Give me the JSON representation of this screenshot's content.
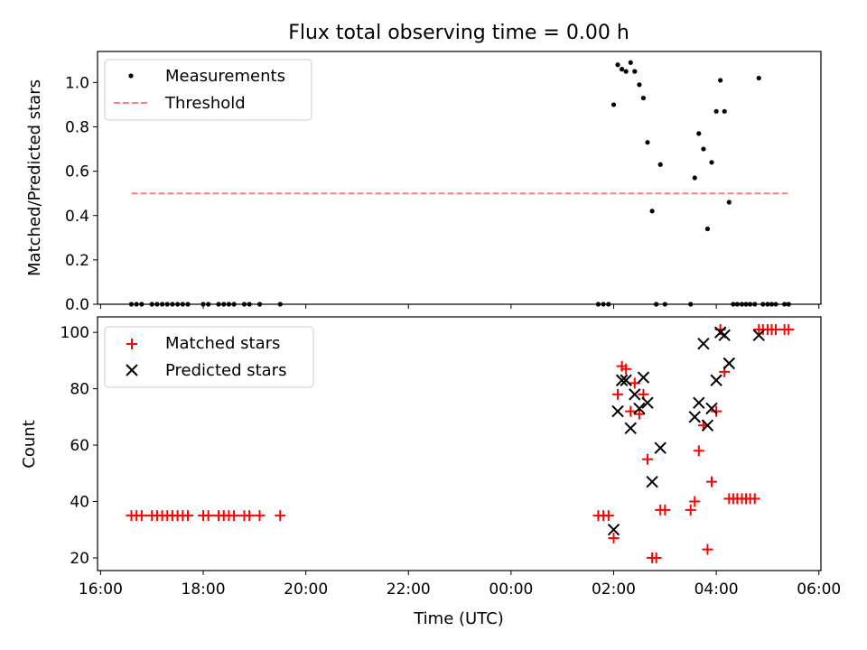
{
  "chart_data": [
    {
      "type": "scatter",
      "title": "Flux total observing time = 0.00 h",
      "xlabel": "",
      "ylabel": "Matched/Predicted stars",
      "xlim_hours": [
        15.94,
        30.04
      ],
      "ylim": [
        0,
        1.14
      ],
      "yticks": [
        0.0,
        0.2,
        0.4,
        0.6,
        0.8,
        1.0
      ],
      "ytick_labels": [
        "0.0",
        "0.2",
        "0.4",
        "0.6",
        "0.8",
        "1.0"
      ],
      "legend_position": "top-left",
      "series": [
        {
          "name": "Measurements",
          "marker": "dot",
          "color": "#000000",
          "points": [
            [
              16.6,
              0
            ],
            [
              16.7,
              0
            ],
            [
              16.8,
              0
            ],
            [
              17.0,
              0
            ],
            [
              17.1,
              0
            ],
            [
              17.2,
              0
            ],
            [
              17.3,
              0
            ],
            [
              17.4,
              0
            ],
            [
              17.5,
              0
            ],
            [
              17.6,
              0
            ],
            [
              17.7,
              0
            ],
            [
              18.0,
              0
            ],
            [
              18.1,
              0
            ],
            [
              18.3,
              0
            ],
            [
              18.4,
              0
            ],
            [
              18.5,
              0
            ],
            [
              18.6,
              0
            ],
            [
              18.8,
              0
            ],
            [
              18.9,
              0
            ],
            [
              19.1,
              0
            ],
            [
              19.5,
              0
            ],
            [
              25.7,
              0
            ],
            [
              25.8,
              0
            ],
            [
              25.9,
              0
            ],
            [
              26.0,
              0.9
            ],
            [
              26.08,
              1.08
            ],
            [
              26.16,
              1.06
            ],
            [
              26.24,
              1.05
            ],
            [
              26.33,
              1.09
            ],
            [
              26.41,
              1.05
            ],
            [
              26.5,
              0.99
            ],
            [
              26.58,
              0.93
            ],
            [
              26.66,
              0.73
            ],
            [
              26.75,
              0.42
            ],
            [
              26.83,
              0
            ],
            [
              26.91,
              0.63
            ],
            [
              27.0,
              0
            ],
            [
              27.5,
              0
            ],
            [
              27.58,
              0.57
            ],
            [
              27.66,
              0.77
            ],
            [
              27.75,
              0.7
            ],
            [
              27.83,
              0.34
            ],
            [
              27.91,
              0.64
            ],
            [
              28.0,
              0.87
            ],
            [
              28.08,
              1.01
            ],
            [
              28.16,
              0.87
            ],
            [
              28.25,
              0.46
            ],
            [
              28.33,
              0
            ],
            [
              28.41,
              0
            ],
            [
              28.5,
              0
            ],
            [
              28.58,
              0
            ],
            [
              28.66,
              0
            ],
            [
              28.75,
              0
            ],
            [
              28.83,
              1.02
            ],
            [
              28.91,
              0
            ],
            [
              29.0,
              0
            ],
            [
              29.08,
              0
            ],
            [
              29.16,
              0
            ],
            [
              29.33,
              0
            ],
            [
              29.41,
              0
            ]
          ]
        },
        {
          "name": "Threshold",
          "marker": "dashed-line",
          "color": "#ff8080",
          "x": [
            16.6,
            29.41
          ],
          "y": [
            0.5,
            0.5
          ]
        }
      ]
    },
    {
      "type": "scatter",
      "title": "",
      "xlabel": "Time (UTC)",
      "ylabel": "Count",
      "xlim_hours": [
        15.94,
        30.04
      ],
      "ylim": [
        15.5,
        105.5
      ],
      "yticks": [
        20,
        40,
        60,
        80,
        100
      ],
      "ytick_labels": [
        "20",
        "40",
        "60",
        "80",
        "100"
      ],
      "xticks_hours": [
        16,
        18,
        20,
        22,
        24,
        26,
        28,
        30
      ],
      "xtick_labels": [
        "16:00",
        "18:00",
        "20:00",
        "22:00",
        "00:00",
        "02:00",
        "04:00",
        "06:00"
      ],
      "legend_position": "top-left",
      "series": [
        {
          "name": "Matched stars",
          "marker": "plus",
          "color": "#ff0000",
          "points": [
            [
              16.6,
              35
            ],
            [
              16.7,
              35
            ],
            [
              16.8,
              35
            ],
            [
              17.0,
              35
            ],
            [
              17.1,
              35
            ],
            [
              17.2,
              35
            ],
            [
              17.3,
              35
            ],
            [
              17.4,
              35
            ],
            [
              17.5,
              35
            ],
            [
              17.6,
              35
            ],
            [
              17.7,
              35
            ],
            [
              18.0,
              35
            ],
            [
              18.1,
              35
            ],
            [
              18.3,
              35
            ],
            [
              18.4,
              35
            ],
            [
              18.5,
              35
            ],
            [
              18.6,
              35
            ],
            [
              18.8,
              35
            ],
            [
              18.9,
              35
            ],
            [
              19.1,
              35
            ],
            [
              19.5,
              35
            ],
            [
              25.7,
              35
            ],
            [
              25.8,
              35
            ],
            [
              25.9,
              35
            ],
            [
              26.0,
              27
            ],
            [
              26.08,
              78
            ],
            [
              26.16,
              88
            ],
            [
              26.24,
              87
            ],
            [
              26.33,
              72
            ],
            [
              26.41,
              82
            ],
            [
              26.5,
              71
            ],
            [
              26.58,
              78
            ],
            [
              26.66,
              55
            ],
            [
              26.75,
              20
            ],
            [
              26.83,
              20
            ],
            [
              26.91,
              37
            ],
            [
              27.0,
              37
            ],
            [
              27.5,
              37
            ],
            [
              27.58,
              40
            ],
            [
              27.66,
              58
            ],
            [
              27.75,
              67
            ],
            [
              27.83,
              23
            ],
            [
              27.91,
              47
            ],
            [
              28.0,
              72
            ],
            [
              28.08,
              101
            ],
            [
              28.16,
              86
            ],
            [
              28.25,
              41
            ],
            [
              28.33,
              41
            ],
            [
              28.41,
              41
            ],
            [
              28.5,
              41
            ],
            [
              28.58,
              41
            ],
            [
              28.66,
              41
            ],
            [
              28.75,
              41
            ],
            [
              28.83,
              101
            ],
            [
              28.91,
              101
            ],
            [
              29.0,
              101
            ],
            [
              29.08,
              101
            ],
            [
              29.16,
              101
            ],
            [
              29.33,
              101
            ],
            [
              29.41,
              101
            ]
          ]
        },
        {
          "name": "Predicted stars",
          "marker": "x",
          "color": "#000000",
          "points": [
            [
              26.0,
              30
            ],
            [
              26.08,
              72
            ],
            [
              26.16,
              83
            ],
            [
              26.24,
              83
            ],
            [
              26.33,
              66
            ],
            [
              26.41,
              78
            ],
            [
              26.5,
              73
            ],
            [
              26.58,
              84
            ],
            [
              26.66,
              75
            ],
            [
              26.75,
              47
            ],
            [
              26.91,
              59
            ],
            [
              27.58,
              70
            ],
            [
              27.66,
              75
            ],
            [
              27.75,
              96
            ],
            [
              27.83,
              67
            ],
            [
              27.91,
              73
            ],
            [
              28.0,
              83
            ],
            [
              28.08,
              100
            ],
            [
              28.16,
              99
            ],
            [
              28.25,
              89
            ],
            [
              28.83,
              99
            ]
          ]
        }
      ]
    }
  ]
}
